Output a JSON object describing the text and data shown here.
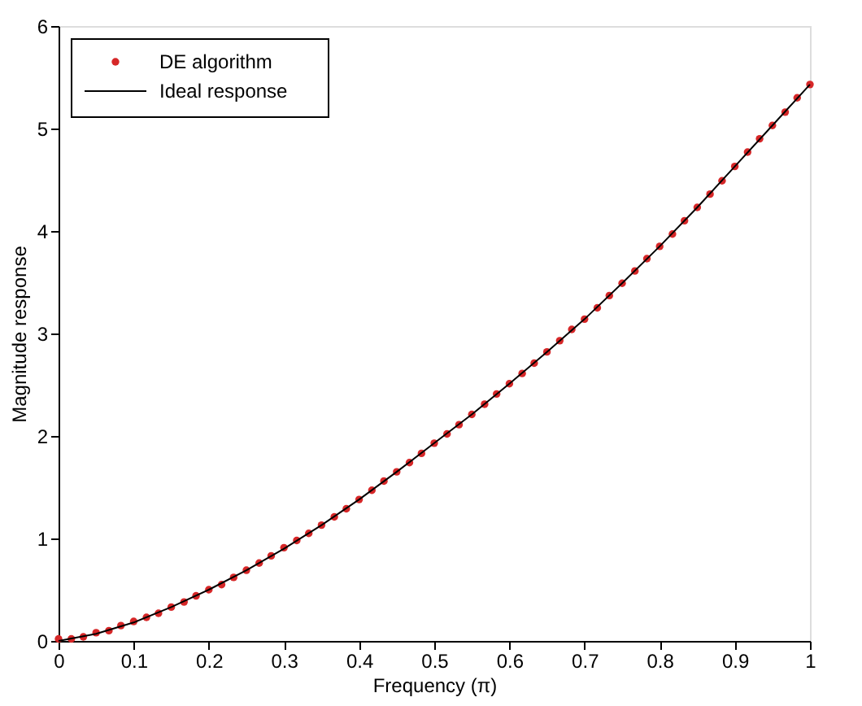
{
  "chart_data": {
    "type": "scatter",
    "xlabel": "Frequency (π)",
    "ylabel": "Magnitude response",
    "xlim": [
      0,
      1
    ],
    "ylim": [
      0,
      6
    ],
    "xticks": [
      0,
      0.1,
      0.2,
      0.3,
      0.4,
      0.5,
      0.6,
      0.7,
      0.8,
      0.9,
      1
    ],
    "yticks": [
      0,
      1,
      2,
      3,
      4,
      5,
      6
    ],
    "grid": false,
    "legend": "top left",
    "series": [
      {
        "name": "DE algorithm",
        "marker": "circle",
        "color": "#d62728",
        "x": [
          0,
          0.017,
          0.033,
          0.05,
          0.067,
          0.083,
          0.1,
          0.117,
          0.133,
          0.15,
          0.167,
          0.183,
          0.2,
          0.217,
          0.233,
          0.25,
          0.267,
          0.283,
          0.3,
          0.317,
          0.333,
          0.35,
          0.367,
          0.383,
          0.4,
          0.417,
          0.433,
          0.45,
          0.467,
          0.483,
          0.5,
          0.517,
          0.533,
          0.55,
          0.567,
          0.583,
          0.6,
          0.617,
          0.633,
          0.65,
          0.667,
          0.683,
          0.7,
          0.717,
          0.733,
          0.75,
          0.767,
          0.783,
          0.8,
          0.817,
          0.833,
          0.85,
          0.867,
          0.883,
          0.9,
          0.917,
          0.933,
          0.95,
          0.967,
          0.983,
          1
        ],
        "values": [
          0.02,
          0.02,
          0.04,
          0.08,
          0.1,
          0.15,
          0.19,
          0.23,
          0.27,
          0.33,
          0.38,
          0.44,
          0.5,
          0.55,
          0.62,
          0.69,
          0.76,
          0.83,
          0.91,
          0.98,
          1.05,
          1.13,
          1.21,
          1.29,
          1.38,
          1.47,
          1.56,
          1.65,
          1.74,
          1.83,
          1.93,
          2.02,
          2.11,
          2.21,
          2.31,
          2.41,
          2.51,
          2.61,
          2.71,
          2.82,
          2.93,
          3.04,
          3.14,
          3.25,
          3.37,
          3.49,
          3.61,
          3.73,
          3.85,
          3.97,
          4.1,
          4.23,
          4.36,
          4.49,
          4.63,
          4.77,
          4.9,
          5.03,
          5.16,
          5.3,
          5.43
        ]
      },
      {
        "name": "Ideal response",
        "type": "line",
        "line_style": "solid",
        "color": "#000000",
        "x": [
          0,
          0.05,
          0.1,
          0.15,
          0.2,
          0.25,
          0.3,
          0.35,
          0.4,
          0.45,
          0.5,
          0.55,
          0.6,
          0.65,
          0.7,
          0.75,
          0.8,
          0.85,
          0.9,
          0.95,
          1
        ],
        "values": [
          0,
          0.07,
          0.18,
          0.33,
          0.5,
          0.69,
          0.9,
          1.13,
          1.38,
          1.65,
          1.93,
          2.21,
          2.51,
          2.82,
          3.14,
          3.49,
          3.85,
          4.23,
          4.63,
          5.03,
          5.43
        ]
      }
    ]
  }
}
